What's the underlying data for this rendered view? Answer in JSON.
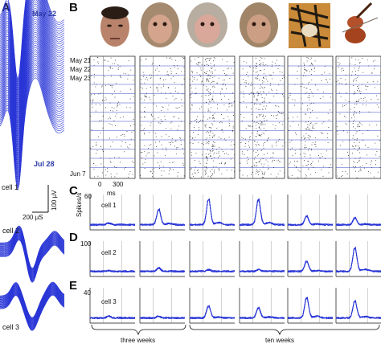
{
  "panels": {
    "A": "A",
    "B": "B",
    "C": "C",
    "D": "D",
    "E": "E"
  },
  "panel_a": {
    "date_top": "May 22",
    "date_bottom": "Jul 28",
    "cell1": "cell 1",
    "cell2": "cell 2",
    "cell3": "cell 3",
    "scale_v": "100 µV",
    "scale_h": "200 µS"
  },
  "panel_b": {
    "stimuli": [
      "man-face",
      "monkey-face-1",
      "monkey-face-2",
      "monkey-face-3",
      "tiger",
      "violin"
    ],
    "dates": [
      "May 21",
      "May 22",
      "May 23",
      "Jun 7"
    ]
  },
  "panel_c": {
    "y_max": "60",
    "y_unit": "Spikes/s",
    "x_start": "0",
    "x_unit": "ms",
    "x_end": "300",
    "cell": "cell 1"
  },
  "panel_d": {
    "y_max": "100",
    "cell": "cell 2"
  },
  "panel_e": {
    "y_max": "40",
    "cell": "cell 3"
  },
  "brackets": {
    "left": "three weeks",
    "right": "ten weeks"
  },
  "colors": {
    "trace": "#2a36d6",
    "raster": "#111111",
    "raster_lines": "#3a48c8"
  }
}
